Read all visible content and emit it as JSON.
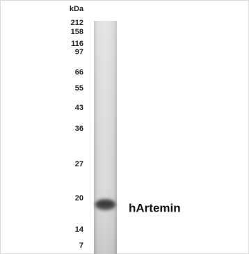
{
  "unit_label": "kDa",
  "markers": [
    "212",
    "158",
    "116",
    "97",
    "66",
    "55",
    "43",
    "36",
    "27",
    "20",
    "14",
    "7"
  ],
  "band_label": "hArtemin"
}
